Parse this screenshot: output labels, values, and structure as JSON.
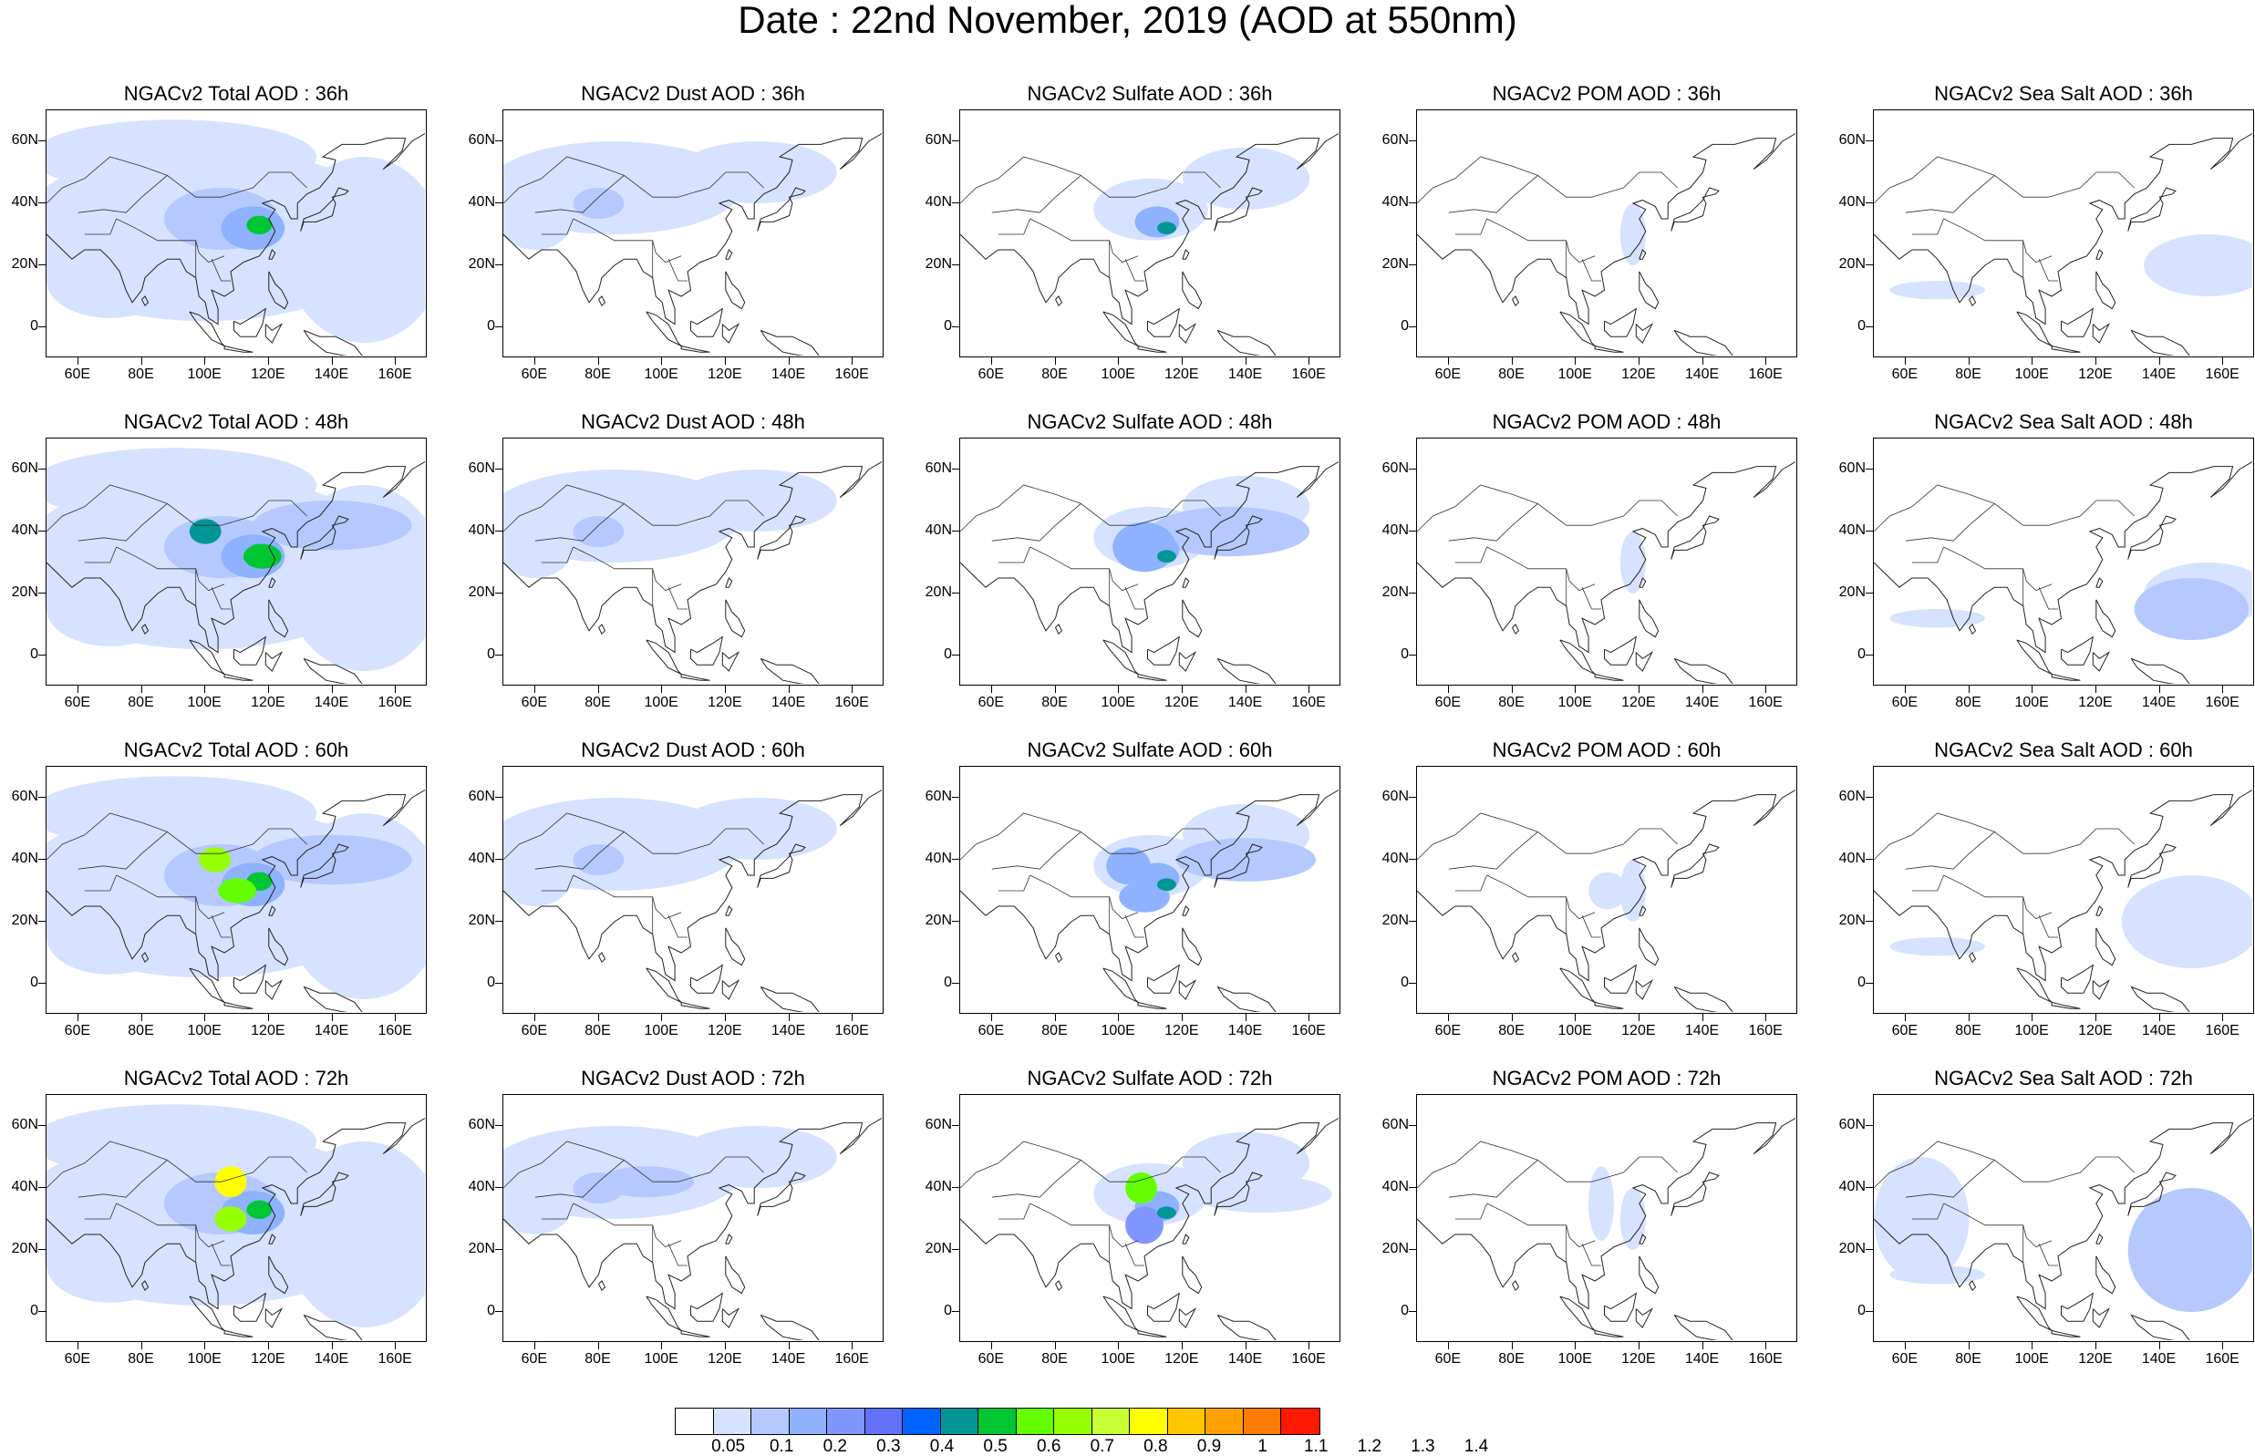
{
  "title": "Date : 22nd November, 2019 (AOD at 550nm)",
  "axes": {
    "lat_ticks": [
      "60N",
      "40N",
      "20N",
      "0"
    ],
    "lat_values": [
      60,
      40,
      20,
      0
    ],
    "lon_ticks": [
      "60E",
      "80E",
      "100E",
      "120E",
      "140E",
      "160E"
    ],
    "lon_values": [
      60,
      80,
      100,
      120,
      140,
      160
    ],
    "lon_range": [
      50,
      170
    ],
    "lat_range": [
      -10,
      70
    ]
  },
  "panels": [
    {
      "title": "NGACv2 Total AOD : 36h",
      "species": "total",
      "hour": 36
    },
    {
      "title": "NGACv2 Dust AOD : 36h",
      "species": "dust",
      "hour": 36
    },
    {
      "title": "NGACv2 Sulfate AOD : 36h",
      "species": "sulfate",
      "hour": 36
    },
    {
      "title": "NGACv2 POM AOD : 36h",
      "species": "pom",
      "hour": 36
    },
    {
      "title": "NGACv2 Sea Salt AOD : 36h",
      "species": "seasalt",
      "hour": 36
    },
    {
      "title": "NGACv2 Total AOD : 48h",
      "species": "total",
      "hour": 48
    },
    {
      "title": "NGACv2 Dust AOD : 48h",
      "species": "dust",
      "hour": 48
    },
    {
      "title": "NGACv2 Sulfate AOD : 48h",
      "species": "sulfate",
      "hour": 48
    },
    {
      "title": "NGACv2 POM AOD : 48h",
      "species": "pom",
      "hour": 48
    },
    {
      "title": "NGACv2 Sea Salt AOD : 48h",
      "species": "seasalt",
      "hour": 48
    },
    {
      "title": "NGACv2 Total AOD : 60h",
      "species": "total",
      "hour": 60
    },
    {
      "title": "NGACv2 Dust AOD : 60h",
      "species": "dust",
      "hour": 60
    },
    {
      "title": "NGACv2 Sulfate AOD : 60h",
      "species": "sulfate",
      "hour": 60
    },
    {
      "title": "NGACv2 POM AOD : 60h",
      "species": "pom",
      "hour": 60
    },
    {
      "title": "NGACv2 Sea Salt AOD : 60h",
      "species": "seasalt",
      "hour": 60
    },
    {
      "title": "NGACv2 Total AOD : 72h",
      "species": "total",
      "hour": 72
    },
    {
      "title": "NGACv2 Dust AOD : 72h",
      "species": "dust",
      "hour": 72
    },
    {
      "title": "NGACv2 Sulfate AOD : 72h",
      "species": "sulfate",
      "hour": 72
    },
    {
      "title": "NGACv2 POM AOD : 72h",
      "species": "pom",
      "hour": 72
    },
    {
      "title": "NGACv2 Sea Salt  AOD : 72h",
      "species": "seasalt",
      "hour": 72
    }
  ],
  "colorbar": {
    "colors": [
      "#ffffff",
      "#d6e2ff",
      "#b5c9ff",
      "#8eb2ff",
      "#7f96ff",
      "#6370f8",
      "#0063ff",
      "#009696",
      "#00c633",
      "#63ff00",
      "#96ff00",
      "#c6ff33",
      "#ffff00",
      "#ffc600",
      "#ffa000",
      "#ff7c00",
      "#ff1900"
    ],
    "labels": [
      "0.05",
      "0.1",
      "0.2",
      "0.3",
      "0.4",
      "0.5",
      "0.6",
      "0.7",
      "0.8",
      "0.9",
      "1",
      "1.1",
      "1.2",
      "1.3",
      "1.4"
    ]
  }
}
